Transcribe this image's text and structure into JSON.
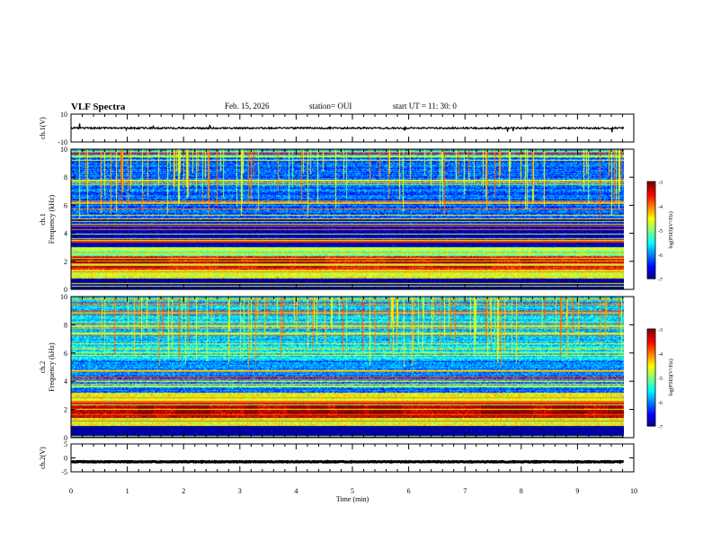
{
  "header": {
    "title": "VLF Spectra",
    "date": "Feb. 15, 2026",
    "station": "station= OUI",
    "start": "start  UT =   11: 30: 0"
  },
  "chart_data": [
    {
      "type": "line",
      "panel": "waveform-ch1",
      "ylabel": "ch.1(V)",
      "ylim": [
        -10,
        10
      ],
      "yticks": [
        "10",
        "-10"
      ],
      "xlim": [
        0,
        10
      ],
      "baseline": 0,
      "amplitude": 1.2
    },
    {
      "type": "heatmap",
      "panel": "spectrogram-ch1",
      "ylabel": [
        "ch.1",
        "Frequency  (kHz)"
      ],
      "ylim": [
        0,
        10
      ],
      "yticks": [
        "0",
        "2",
        "4",
        "6",
        "8",
        "10"
      ],
      "xlim": [
        0,
        9.82
      ],
      "colorbar": {
        "label": "log(PSD)(V²/Hz)",
        "range": [
          -7,
          -3
        ],
        "ticks": [
          "-3",
          "-4",
          "-5",
          "-6",
          "-7"
        ]
      },
      "bands_khz": [
        {
          "from": 1.4,
          "to": 2.4,
          "level": -3.4
        },
        {
          "from": 0.8,
          "to": 1.4,
          "level": -4.6
        },
        {
          "from": 2.4,
          "to": 3.0,
          "level": -5.0
        },
        {
          "from": 3.0,
          "to": 5.0,
          "level": -6.8
        },
        {
          "from": 5.0,
          "to": 10.0,
          "level": -6.1
        }
      ]
    },
    {
      "type": "heatmap",
      "panel": "spectrogram-ch2",
      "ylabel": [
        "ch.2",
        "Frequency  (kHz)"
      ],
      "ylim": [
        0,
        10
      ],
      "yticks": [
        "0",
        "2",
        "4",
        "6",
        "8",
        "10"
      ],
      "xlim": [
        0,
        9.82
      ],
      "colorbar": {
        "label": "log(PSD)(V²/Hz)",
        "range": [
          -7,
          -3
        ],
        "ticks": [
          "-3",
          "-4",
          "-5",
          "-6",
          "-7"
        ]
      },
      "bands_khz": [
        {
          "from": 1.4,
          "to": 2.4,
          "level": -3.2
        },
        {
          "from": 0.8,
          "to": 1.4,
          "level": -4.5
        },
        {
          "from": 2.4,
          "to": 3.2,
          "level": -4.6
        },
        {
          "from": 3.2,
          "to": 5.5,
          "level": -6.0
        },
        {
          "from": 5.5,
          "to": 10.0,
          "level": -5.6
        }
      ]
    },
    {
      "type": "line",
      "panel": "waveform-ch2",
      "ylabel": "ch.2(V)",
      "ylim": [
        -5,
        5
      ],
      "yticks": [
        "5",
        "0",
        "-5"
      ],
      "xlim": [
        0,
        10
      ],
      "baseline": -1.4,
      "amplitude": 0.25
    }
  ],
  "xaxis": {
    "label": "Time  (min)",
    "ticks": [
      "0",
      "1",
      "2",
      "3",
      "4",
      "5",
      "6",
      "7",
      "8",
      "9",
      "10"
    ],
    "range": [
      0,
      10
    ]
  },
  "colors": {
    "low": "#000080",
    "mid": "#00ff80",
    "high": "#ff0000",
    "line": "#000000"
  }
}
